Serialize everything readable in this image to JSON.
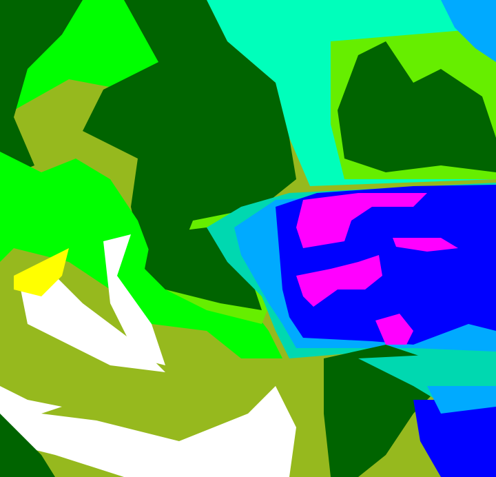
{
  "image": {
    "kind": "false-color classified satellite image",
    "legend_shown": false
  },
  "palette": {
    "dark_green": "#006400",
    "bright_green": "#00ff00",
    "yellow_green": "#66ee00",
    "olive": "#96b91e",
    "aquamarine": "#00ffbb",
    "teal": "#00d8b0",
    "sky_blue": "#00aaff",
    "blue": "#0000ff",
    "magenta": "#ff00ff",
    "white": "#ffffff",
    "yellow": "#ffff00"
  }
}
